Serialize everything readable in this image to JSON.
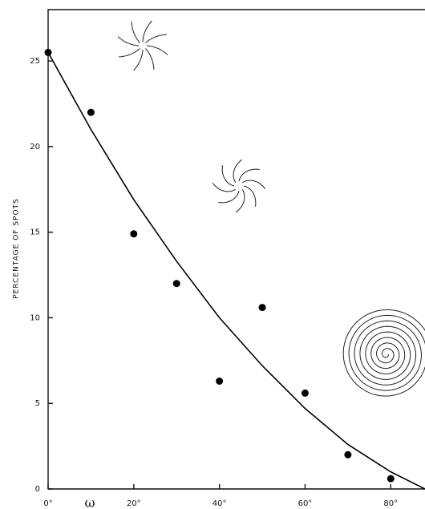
{
  "chart_data": {
    "type": "scatter",
    "ylabel": "PERCENTAGE OF SPOTS",
    "xlabel": "ω",
    "xlim": [
      0,
      88
    ],
    "ylim": [
      0,
      28
    ],
    "xticks": [
      {
        "value": 0,
        "label": "0°"
      },
      {
        "value": 20,
        "label": "20°"
      },
      {
        "value": 40,
        "label": "40°"
      },
      {
        "value": 60,
        "label": "60°"
      },
      {
        "value": 80,
        "label": "80°"
      }
    ],
    "yticks": [
      0,
      5,
      10,
      15,
      20,
      25
    ],
    "series": [
      {
        "type": "scatter",
        "color": "#000000",
        "x": [
          0,
          10,
          20,
          30,
          40,
          50,
          60,
          70,
          80
        ],
        "values": [
          25.5,
          22.0,
          14.9,
          12.0,
          6.3,
          10.6,
          5.6,
          2.0,
          0.6
        ]
      },
      {
        "type": "line",
        "color": "#000000",
        "x": [
          0,
          10,
          20,
          30,
          40,
          50,
          60,
          70,
          80,
          88
        ],
        "values": [
          25.5,
          21.0,
          16.9,
          13.3,
          10.0,
          7.2,
          4.7,
          2.6,
          1.0,
          0
        ]
      }
    ]
  }
}
